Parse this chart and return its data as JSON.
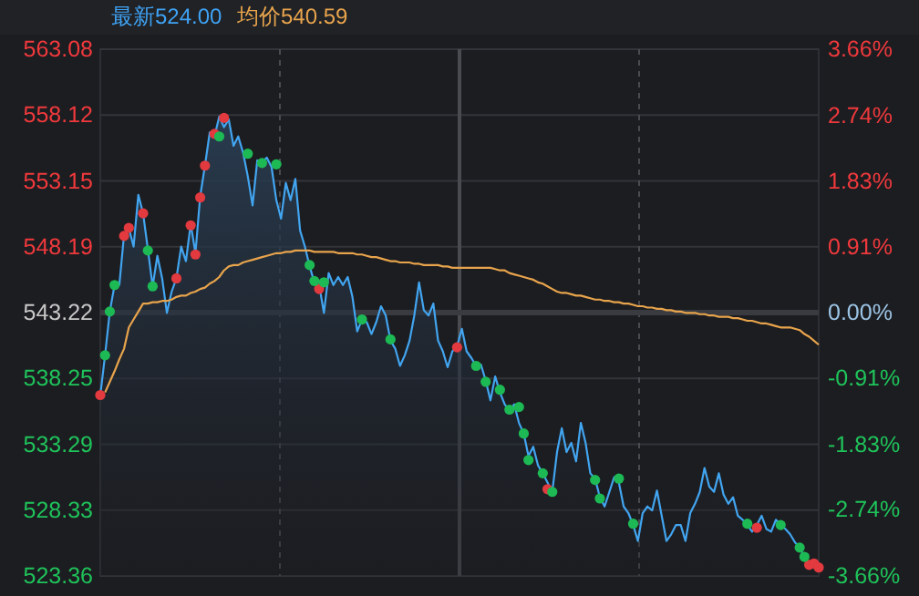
{
  "chart_data": {
    "type": "area",
    "annotations": [
      "最新524.00",
      "均价540.59"
    ],
    "categories": [
      null,
      null,
      null,
      null,
      null,
      null,
      null,
      null,
      null,
      null,
      null,
      null,
      null,
      null,
      null,
      null,
      null,
      null,
      null,
      null,
      null,
      null,
      null,
      null,
      null,
      null,
      null,
      null,
      null,
      null,
      null,
      null,
      null,
      null,
      null,
      null,
      null,
      null,
      null,
      null,
      null,
      null,
      null,
      null,
      null,
      null,
      null,
      null,
      null,
      null,
      null,
      null,
      null,
      null,
      null,
      null,
      null,
      null,
      null,
      null,
      null,
      null,
      null,
      null,
      null,
      null,
      null,
      null,
      null,
      null,
      null,
      null,
      null,
      null,
      null,
      null,
      null,
      null,
      null,
      null,
      null,
      null,
      null,
      null,
      null,
      null,
      null,
      null,
      null,
      null,
      null,
      null,
      null,
      null,
      null,
      null,
      null,
      null,
      null,
      null,
      null,
      null,
      null,
      null,
      null,
      null,
      null,
      null,
      null,
      null,
      null,
      null,
      null,
      null,
      null,
      null,
      null,
      null,
      null,
      null,
      null,
      null,
      null,
      null,
      null,
      null,
      null,
      null,
      null,
      null,
      null,
      null,
      null,
      null,
      null,
      null,
      null,
      null,
      null,
      null,
      null,
      null,
      null,
      null,
      null,
      null,
      null,
      null,
      null,
      null,
      null,
      null
    ],
    "ylim": [
      523.36,
      563.08
    ],
    "yticks": [
      523.36,
      528.33,
      533.29,
      538.25,
      543.22,
      548.19,
      553.15,
      558.12,
      563.08
    ],
    "y2lim": [
      -3.66,
      3.66
    ],
    "y2ticks": [
      {
        "value": -3.66,
        "label": "-3.66%"
      },
      {
        "value": -2.74,
        "label": "-2.74%"
      },
      {
        "value": -1.83,
        "label": "-1.83%"
      },
      {
        "value": -0.91,
        "label": "-0.91%"
      },
      {
        "value": 0,
        "label": "0.00%"
      },
      {
        "value": 0.91,
        "label": "0.91%"
      },
      {
        "value": 1.83,
        "label": "1.83%"
      },
      {
        "value": 2.74,
        "label": "2.74%"
      },
      {
        "value": 3.66,
        "label": "3.66%"
      }
    ],
    "grid": true,
    "ref_lines": [
      {
        "axis": "y",
        "value": 543.22,
        "color": "#3a3b40"
      }
    ],
    "series": [
      {
        "color": "#42a5f0",
        "values": [
          537.0,
          540.0,
          543.3,
          545.3,
          545.3,
          549.1,
          549.6,
          548.2,
          552.1,
          550.7,
          548.0,
          545.2,
          547.5,
          545.8,
          543.2,
          544.8,
          545.8,
          548.2,
          547.1,
          549.9,
          547.7,
          552.0,
          554.3,
          556.8,
          556.5,
          558.0,
          557.2,
          557.8,
          555.8,
          556.5,
          555.3,
          553.5,
          551.3,
          554.7,
          554.6,
          554.9,
          554.2,
          551.7,
          550.3,
          553.0,
          551.7,
          553.3,
          549.4,
          548.2,
          546.7,
          545.5,
          545.3,
          543.2,
          546.2,
          545.3,
          545.9,
          545.3,
          545.9,
          544.4,
          541.8,
          542.7,
          542.5,
          541.6,
          542.5,
          543.7,
          543.0,
          541.1,
          540.5,
          539.2,
          540.0,
          541.1,
          543.0,
          545.5,
          543.4,
          543.0,
          543.9,
          541.1,
          540.3,
          539.1,
          540.3,
          540.7,
          542.0,
          540.3,
          539.8,
          539.2,
          539.3,
          538.1,
          536.6,
          538.4,
          537.2,
          536.3,
          535.8,
          536.3,
          534.9,
          534.1,
          532.4,
          533.1,
          531.7,
          531.1,
          530.4,
          529.7,
          532.7,
          534.5,
          532.7,
          533.4,
          532.0,
          534.9,
          533.4,
          531.1,
          530.7,
          529.3,
          528.6,
          529.7,
          530.8,
          530.4,
          528.6,
          528.1,
          527.2,
          526.0,
          528.1,
          528.6,
          528.3,
          529.8,
          527.9,
          526.0,
          526.5,
          527.2,
          527.2,
          526.0,
          528.1,
          528.8,
          529.7,
          531.5,
          530.1,
          529.7,
          531.1,
          529.5,
          528.8,
          529.3,
          527.9,
          527.6,
          527.2,
          526.7,
          527.2,
          527.9,
          526.9,
          526.7,
          527.6,
          527.2,
          526.9,
          526.5,
          525.9,
          525.5,
          524.8,
          524.2,
          524.3,
          524.0
        ]
      },
      {
        "type": "line",
        "color": "#e8a44c",
        "values": [
          null,
          537.2,
          538.0,
          538.8,
          539.7,
          540.5,
          542.1,
          542.7,
          543.3,
          543.9,
          543.9,
          544.0,
          544.0,
          544.1,
          544.1,
          544.2,
          544.4,
          544.5,
          544.5,
          544.7,
          544.8,
          545.0,
          545.1,
          545.4,
          545.6,
          545.9,
          546.4,
          546.7,
          546.8,
          546.8,
          547.0,
          547.1,
          547.2,
          547.3,
          547.4,
          547.5,
          547.6,
          547.7,
          547.7,
          547.8,
          547.8,
          547.9,
          547.9,
          547.9,
          547.9,
          547.8,
          547.8,
          547.8,
          547.8,
          547.8,
          547.7,
          547.7,
          547.7,
          547.7,
          547.6,
          547.6,
          547.5,
          547.4,
          547.4,
          547.3,
          547.2,
          547.1,
          547.1,
          547.0,
          547.0,
          547.0,
          546.9,
          546.9,
          546.8,
          546.8,
          546.8,
          546.8,
          546.7,
          546.7,
          546.6,
          546.6,
          546.6,
          546.6,
          546.6,
          546.6,
          546.6,
          546.6,
          546.6,
          546.5,
          546.4,
          546.4,
          546.2,
          546.1,
          546.0,
          545.9,
          545.8,
          545.7,
          545.5,
          545.4,
          545.2,
          545.0,
          544.8,
          544.7,
          544.7,
          544.6,
          544.5,
          544.5,
          544.4,
          544.3,
          544.2,
          544.2,
          544.1,
          544.1,
          544.0,
          544.0,
          543.9,
          543.9,
          543.8,
          543.7,
          543.7,
          543.6,
          543.6,
          543.5,
          543.5,
          543.4,
          543.4,
          543.3,
          543.3,
          543.2,
          543.2,
          543.2,
          543.1,
          543.1,
          543.0,
          543.0,
          542.9,
          542.9,
          542.9,
          542.8,
          542.8,
          542.7,
          542.6,
          542.6,
          542.5,
          542.4,
          542.4,
          542.3,
          542.2,
          542.1,
          542.1,
          542.1,
          542.0,
          541.9,
          541.6,
          541.4,
          541.1,
          540.8
        ]
      },
      {
        "type": "scatter",
        "marker": "circle",
        "color": "#e23a3f",
        "values": [
          537.0,
          null,
          null,
          null,
          null,
          549.0,
          549.6,
          null,
          null,
          550.7,
          null,
          null,
          null,
          null,
          null,
          null,
          545.8,
          null,
          null,
          549.8,
          547.6,
          551.9,
          554.3,
          null,
          556.7,
          null,
          557.9,
          null,
          null,
          null,
          null,
          null,
          null,
          null,
          null,
          null,
          null,
          null,
          null,
          null,
          null,
          null,
          null,
          null,
          null,
          null,
          545.0,
          null,
          null,
          null,
          null,
          null,
          null,
          null,
          null,
          null,
          null,
          null,
          null,
          null,
          null,
          null,
          null,
          null,
          null,
          null,
          null,
          null,
          null,
          null,
          null,
          null,
          null,
          null,
          null,
          540.6,
          null,
          null,
          null,
          null,
          null,
          null,
          null,
          null,
          null,
          null,
          null,
          null,
          null,
          null,
          null,
          null,
          null,
          null,
          529.9,
          null,
          null,
          null,
          null,
          null,
          null,
          null,
          null,
          null,
          null,
          null,
          null,
          null,
          null,
          null,
          null,
          null,
          null,
          null,
          null,
          null,
          null,
          null,
          null,
          null,
          null,
          null,
          null,
          null,
          null,
          null,
          null,
          null,
          null,
          null,
          null,
          null,
          null,
          null,
          null,
          null,
          null,
          null,
          527.0,
          null,
          null,
          null,
          null,
          null,
          null,
          null,
          null,
          null,
          null,
          524.2,
          524.3,
          524.0
        ]
      },
      {
        "type": "scatter",
        "marker": "circle",
        "color": "#1db954",
        "values": [
          null,
          540.0,
          543.3,
          545.3,
          null,
          null,
          null,
          null,
          null,
          null,
          547.9,
          545.2,
          null,
          null,
          null,
          null,
          null,
          null,
          null,
          null,
          null,
          null,
          null,
          null,
          null,
          556.5,
          null,
          null,
          null,
          null,
          null,
          555.2,
          null,
          null,
          554.5,
          null,
          null,
          554.4,
          null,
          null,
          null,
          null,
          null,
          null,
          546.8,
          545.6,
          null,
          545.5,
          null,
          null,
          null,
          null,
          null,
          null,
          null,
          542.7,
          null,
          null,
          null,
          null,
          null,
          541.2,
          null,
          null,
          null,
          null,
          null,
          null,
          null,
          null,
          null,
          null,
          null,
          null,
          null,
          null,
          null,
          null,
          null,
          539.2,
          null,
          538.0,
          null,
          null,
          537.4,
          null,
          535.9,
          null,
          536.1,
          534.1,
          532.1,
          null,
          null,
          531.1,
          null,
          529.7,
          null,
          null,
          null,
          null,
          null,
          null,
          null,
          null,
          530.6,
          529.2,
          null,
          null,
          null,
          530.7,
          null,
          null,
          527.3,
          null,
          null,
          null,
          null,
          null,
          null,
          null,
          null,
          null,
          null,
          null,
          null,
          null,
          null,
          null,
          null,
          null,
          null,
          null,
          null,
          null,
          null,
          null,
          527.3,
          null,
          null,
          null,
          null,
          null,
          null,
          527.2,
          null,
          null,
          null,
          525.5,
          524.8,
          null,
          null,
          null
        ]
      }
    ]
  }
}
